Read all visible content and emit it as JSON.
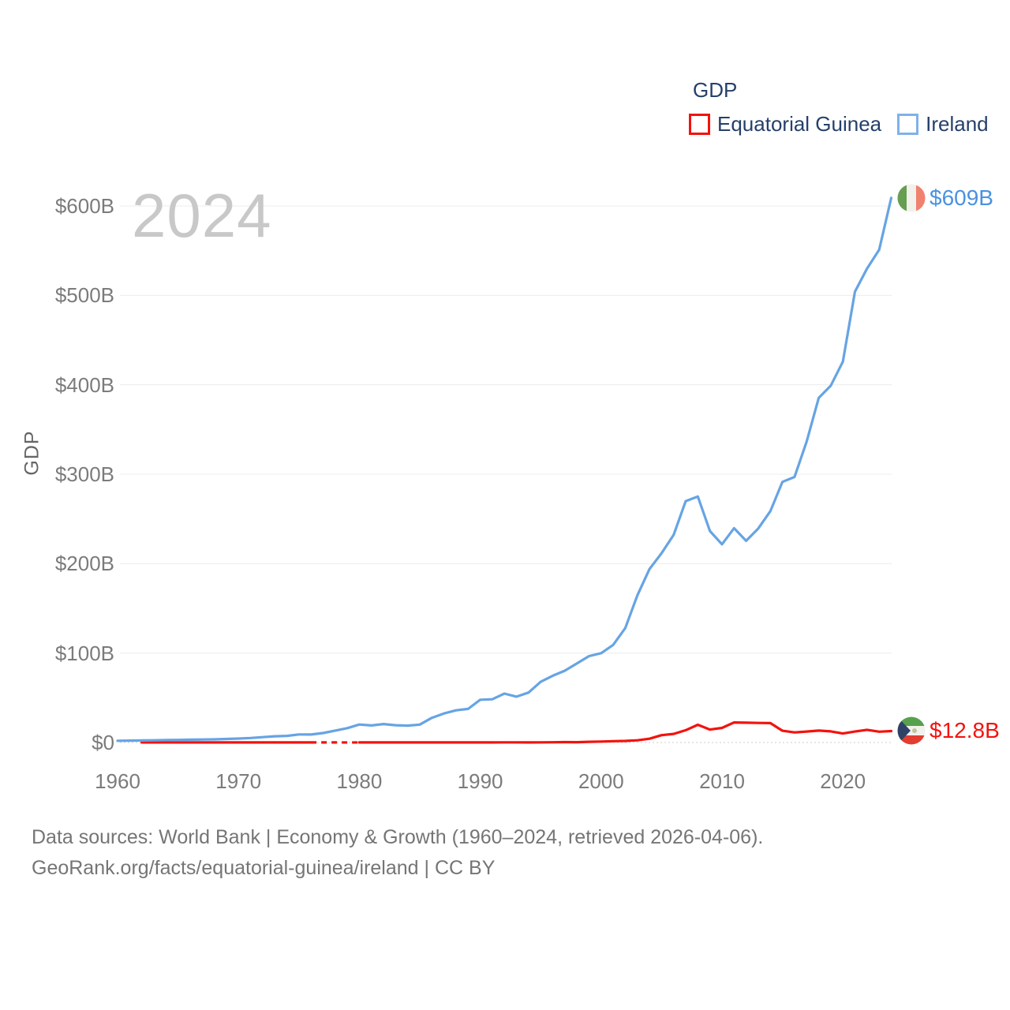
{
  "watermark_year": "2024",
  "legend": {
    "title": "GDP",
    "items": [
      {
        "label": "Equatorial Guinea",
        "color": "#f3120d"
      },
      {
        "label": "Ireland",
        "color": "#7fb2e8"
      }
    ]
  },
  "y_axis": {
    "label": "GDP"
  },
  "end_labels": {
    "ireland": {
      "text": "$609B",
      "color": "#4a92e0"
    },
    "equatorial_guinea": {
      "text": "$12.8B",
      "color": "#f3120d"
    }
  },
  "footer": {
    "line1": "Data sources: World Bank | Economy & Growth (1960–2024, retrieved 2026-04-06).",
    "line2": "GeoRank.org/facts/equatorial-guinea/ireland | CC BY"
  },
  "chart_data": {
    "type": "line",
    "title": "GDP",
    "unit": "billions of current US dollars",
    "xlim": [
      1960,
      2024
    ],
    "ylim": [
      0,
      600
    ],
    "grid": true,
    "legend_position": "top-right",
    "x_label_ticks": [
      1960,
      1970,
      1980,
      1990,
      2000,
      2010,
      2020
    ],
    "y_ticks": [
      {
        "value": 0,
        "label": "$0"
      },
      {
        "value": 100,
        "label": "$100B"
      },
      {
        "value": 200,
        "label": "$200B"
      },
      {
        "value": 300,
        "label": "$300B"
      },
      {
        "value": 400,
        "label": "$400B"
      },
      {
        "value": 500,
        "label": "$500B"
      },
      {
        "value": 600,
        "label": "$600B"
      }
    ],
    "years": [
      1960,
      1961,
      1962,
      1963,
      1964,
      1965,
      1966,
      1967,
      1968,
      1969,
      1970,
      1971,
      1972,
      1973,
      1974,
      1975,
      1976,
      1977,
      1978,
      1979,
      1980,
      1981,
      1982,
      1983,
      1984,
      1985,
      1986,
      1987,
      1988,
      1989,
      1990,
      1991,
      1992,
      1993,
      1994,
      1995,
      1996,
      1997,
      1998,
      1999,
      2000,
      2001,
      2002,
      2003,
      2004,
      2005,
      2006,
      2007,
      2008,
      2009,
      2010,
      2011,
      2012,
      2013,
      2014,
      2015,
      2016,
      2017,
      2018,
      2019,
      2020,
      2021,
      2022,
      2023,
      2024
    ],
    "series": [
      {
        "name": "Equatorial Guinea",
        "color": "#f3120d",
        "end_value_label": "$12.8B",
        "values": [
          null,
          null,
          0.06,
          0.06,
          0.07,
          0.07,
          0.07,
          0.08,
          0.08,
          0.07,
          0.07,
          0.07,
          0.07,
          0.08,
          0.1,
          0.1,
          0.1,
          null,
          null,
          null,
          0.06,
          0.07,
          0.08,
          0.08,
          0.08,
          0.08,
          0.11,
          0.12,
          0.12,
          0.1,
          0.11,
          0.12,
          0.15,
          0.15,
          0.12,
          0.14,
          0.23,
          0.44,
          0.37,
          0.77,
          1.04,
          1.46,
          1.8,
          2.48,
          4.2,
          8.22,
          9.6,
          13.77,
          19.84,
          14.44,
          16.3,
          22.39,
          22.12,
          21.91,
          21.74,
          13.18,
          11.26,
          12.29,
          13.28,
          12.43,
          10.02,
          12.27,
          14.2,
          12.1,
          12.8
        ]
      },
      {
        "name": "Ireland",
        "color": "#66a4e4",
        "end_value_label": "$609B",
        "values": [
          1.94,
          2.09,
          2.26,
          2.43,
          2.76,
          2.95,
          3.15,
          3.37,
          3.51,
          3.93,
          4.45,
          5.01,
          6.0,
          7.01,
          7.4,
          9.02,
          8.95,
          10.63,
          13.36,
          16.08,
          20.08,
          19.07,
          20.67,
          19.32,
          18.87,
          20.03,
          27.61,
          32.45,
          36.0,
          37.62,
          47.81,
          48.32,
          54.68,
          51.27,
          55.87,
          67.81,
          74.66,
          80.32,
          88.43,
          96.64,
          99.84,
          109.18,
          127.95,
          164.61,
          193.9,
          211.65,
          232.17,
          269.92,
          275.02,
          236.44,
          221.66,
          239.62,
          225.56,
          239.39,
          258.73,
          291.46,
          296.92,
          336.26,
          385.3,
          399.06,
          425.89,
          504.18,
          529.95,
          551.0,
          609.0
        ]
      }
    ]
  }
}
